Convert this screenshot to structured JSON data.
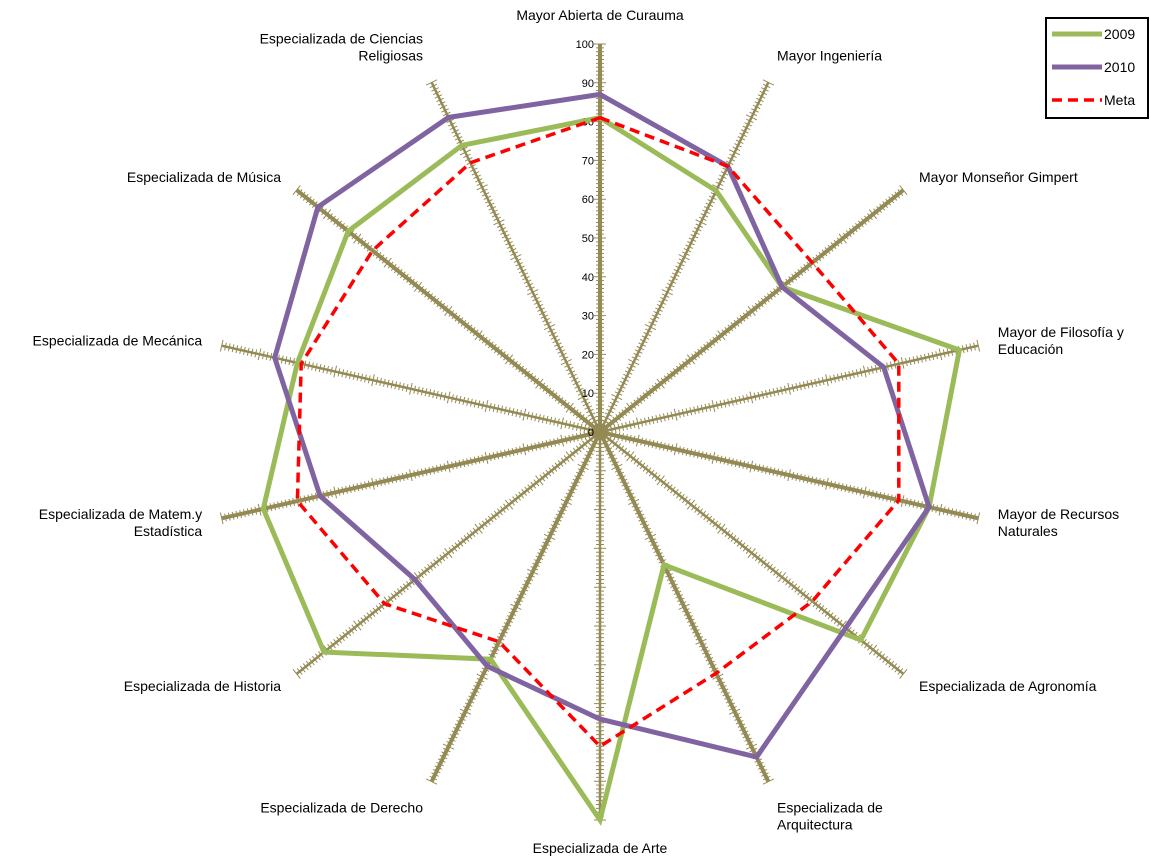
{
  "chart_data": {
    "type": "radar",
    "categories": [
      [
        "Mayor Abierta de Curauma"
      ],
      [
        "Mayor Ingeniería"
      ],
      [
        "Mayor Monseñor Gimpert"
      ],
      [
        "Mayor de Filosofía y",
        "Educación"
      ],
      [
        "Mayor de Recursos",
        "Naturales"
      ],
      [
        "Especializada de Agronomía"
      ],
      [
        "Especializada de",
        "Arquitectura"
      ],
      [
        "Especializada de Arte"
      ],
      [
        "Especializada de Derecho"
      ],
      [
        "Especializada de Historia"
      ],
      [
        "Especializada de Matem.y",
        "Estadística"
      ],
      [
        "Especializada de Mecánica"
      ],
      [
        "Especializada de Música"
      ],
      [
        "Especializada de Ciencias",
        "Religiosas"
      ]
    ],
    "rlim": [
      0,
      100
    ],
    "r_ticks": [
      0,
      10,
      20,
      30,
      40,
      50,
      60,
      70,
      80,
      90,
      100
    ],
    "series": [
      {
        "name": "2009",
        "color": "#9BBB59",
        "dash": "solid",
        "values": [
          81,
          69,
          60,
          95,
          87,
          86,
          38,
          100,
          65,
          91,
          89,
          80,
          83,
          82
        ]
      },
      {
        "name": "2010",
        "color": "#8064A2",
        "dash": "solid",
        "values": [
          87,
          76,
          60,
          75,
          87,
          81,
          93,
          74,
          67,
          61,
          74,
          86,
          93,
          90
        ]
      },
      {
        "name": "Meta",
        "color": "#FF0000",
        "dash": "dashed",
        "values": [
          81,
          76,
          70,
          79,
          79,
          70,
          69,
          81,
          60,
          71,
          80,
          79,
          75,
          77
        ]
      }
    ],
    "legend_position": "top-right",
    "axis_color": "#948A54"
  }
}
